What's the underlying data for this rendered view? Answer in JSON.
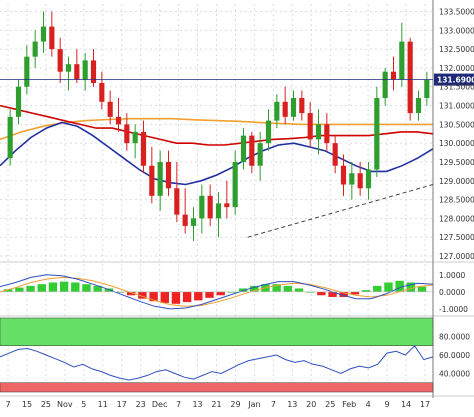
{
  "chart_data": [
    {
      "type": "candlestick",
      "title": "",
      "y_ticks": [
        "133.5000",
        "133.0000",
        "132.5000",
        "132.0000",
        "131.5000",
        "131.0000",
        "130.5000",
        "130.0000",
        "129.5000",
        "129.0000",
        "128.5000",
        "128.0000",
        "127.5000",
        "127.0000"
      ],
      "ylim": [
        127.0,
        133.7
      ],
      "x_ticks": [
        "7",
        "15",
        "25",
        "Nov",
        "5",
        "11",
        "17",
        "23",
        "Dec",
        "7",
        "13",
        "21",
        "29",
        "Jan",
        "7",
        "13",
        "20",
        "25",
        "Feb",
        "4",
        "9",
        "14",
        "17"
      ],
      "last_price": "131.6900",
      "last_price_value": 131.69,
      "candles": [
        {
          "o": 129.6,
          "h": 130.9,
          "l": 129.4,
          "c": 130.7
        },
        {
          "o": 130.7,
          "h": 131.7,
          "l": 130.5,
          "c": 131.5
        },
        {
          "o": 131.5,
          "h": 132.6,
          "l": 131.3,
          "c": 132.3
        },
        {
          "o": 132.3,
          "h": 133.0,
          "l": 132.0,
          "c": 132.7
        },
        {
          "o": 132.7,
          "h": 133.5,
          "l": 132.4,
          "c": 133.1
        },
        {
          "o": 133.1,
          "h": 133.5,
          "l": 132.3,
          "c": 132.5
        },
        {
          "o": 132.5,
          "h": 132.8,
          "l": 131.6,
          "c": 131.9
        },
        {
          "o": 131.9,
          "h": 132.3,
          "l": 131.4,
          "c": 132.1
        },
        {
          "o": 132.1,
          "h": 132.5,
          "l": 131.6,
          "c": 131.7
        },
        {
          "o": 131.7,
          "h": 132.4,
          "l": 131.4,
          "c": 132.2
        },
        {
          "o": 132.2,
          "h": 132.5,
          "l": 131.5,
          "c": 131.6
        },
        {
          "o": 131.6,
          "h": 131.9,
          "l": 130.9,
          "c": 131.1
        },
        {
          "o": 131.1,
          "h": 131.4,
          "l": 130.5,
          "c": 130.7
        },
        {
          "o": 130.7,
          "h": 131.2,
          "l": 130.3,
          "c": 130.5
        },
        {
          "o": 130.5,
          "h": 130.8,
          "l": 129.8,
          "c": 130.0
        },
        {
          "o": 130.0,
          "h": 130.5,
          "l": 129.6,
          "c": 130.3
        },
        {
          "o": 130.3,
          "h": 130.6,
          "l": 129.2,
          "c": 129.4
        },
        {
          "o": 129.4,
          "h": 129.9,
          "l": 128.4,
          "c": 128.6
        },
        {
          "o": 128.6,
          "h": 129.8,
          "l": 128.2,
          "c": 129.5
        },
        {
          "o": 129.5,
          "h": 129.8,
          "l": 128.6,
          "c": 128.8
        },
        {
          "o": 128.8,
          "h": 129.5,
          "l": 127.9,
          "c": 128.1
        },
        {
          "o": 128.1,
          "h": 128.8,
          "l": 127.6,
          "c": 127.8
        },
        {
          "o": 127.8,
          "h": 128.3,
          "l": 127.4,
          "c": 128.0
        },
        {
          "o": 128.0,
          "h": 128.9,
          "l": 127.6,
          "c": 128.6
        },
        {
          "o": 128.6,
          "h": 128.9,
          "l": 127.8,
          "c": 128.0
        },
        {
          "o": 128.0,
          "h": 128.7,
          "l": 127.5,
          "c": 128.4
        },
        {
          "o": 128.4,
          "h": 129.0,
          "l": 128.0,
          "c": 128.3
        },
        {
          "o": 128.3,
          "h": 129.8,
          "l": 128.1,
          "c": 129.5
        },
        {
          "o": 129.5,
          "h": 130.4,
          "l": 129.3,
          "c": 130.2
        },
        {
          "o": 130.2,
          "h": 130.3,
          "l": 129.2,
          "c": 129.4
        },
        {
          "o": 129.4,
          "h": 130.3,
          "l": 129.0,
          "c": 130.0
        },
        {
          "o": 130.0,
          "h": 130.9,
          "l": 129.8,
          "c": 130.6
        },
        {
          "o": 130.6,
          "h": 131.3,
          "l": 130.4,
          "c": 131.1
        },
        {
          "o": 131.1,
          "h": 131.5,
          "l": 130.5,
          "c": 130.7
        },
        {
          "o": 130.7,
          "h": 131.4,
          "l": 130.6,
          "c": 131.2
        },
        {
          "o": 131.2,
          "h": 131.4,
          "l": 130.6,
          "c": 130.8
        },
        {
          "o": 130.8,
          "h": 131.1,
          "l": 129.9,
          "c": 130.1
        },
        {
          "o": 130.1,
          "h": 130.9,
          "l": 129.7,
          "c": 130.5
        },
        {
          "o": 130.5,
          "h": 130.8,
          "l": 129.8,
          "c": 130.0
        },
        {
          "o": 130.0,
          "h": 130.2,
          "l": 129.2,
          "c": 129.4
        },
        {
          "o": 129.4,
          "h": 129.7,
          "l": 128.6,
          "c": 128.9
        },
        {
          "o": 128.9,
          "h": 129.5,
          "l": 128.5,
          "c": 129.2
        },
        {
          "o": 129.2,
          "h": 129.5,
          "l": 128.6,
          "c": 128.8
        },
        {
          "o": 128.8,
          "h": 129.5,
          "l": 128.5,
          "c": 129.3
        },
        {
          "o": 129.3,
          "h": 131.5,
          "l": 129.1,
          "c": 131.2
        },
        {
          "o": 131.2,
          "h": 132.0,
          "l": 131.0,
          "c": 131.9
        },
        {
          "o": 131.9,
          "h": 132.3,
          "l": 131.4,
          "c": 131.7
        },
        {
          "o": 131.7,
          "h": 133.2,
          "l": 131.5,
          "c": 132.7
        },
        {
          "o": 132.7,
          "h": 132.8,
          "l": 130.6,
          "c": 130.8
        },
        {
          "o": 130.8,
          "h": 131.4,
          "l": 130.6,
          "c": 131.2
        },
        {
          "o": 131.2,
          "h": 131.9,
          "l": 131.0,
          "c": 131.69
        }
      ],
      "sma_red": [
        131.0,
        130.9,
        130.8,
        130.7,
        130.6,
        130.5,
        130.4,
        130.4,
        130.3,
        130.2,
        130.1,
        130.0,
        130.0,
        129.95,
        129.95,
        130.0,
        130.05,
        130.1,
        130.12,
        130.15,
        130.2,
        130.2,
        130.2,
        130.2,
        130.25,
        130.3,
        130.3,
        130.25
      ],
      "sma_orange": [
        130.1,
        130.3,
        130.45,
        130.55,
        130.6,
        130.63,
        130.65,
        130.65,
        130.65,
        130.62,
        130.6,
        130.58,
        130.55,
        130.52,
        130.5,
        130.5,
        130.5,
        130.5,
        130.5,
        130.5,
        130.5
      ],
      "sma_blue": [
        129.4,
        129.8,
        130.15,
        130.4,
        130.55,
        130.45,
        130.2,
        129.9,
        129.6,
        129.3,
        129.05,
        128.95,
        128.9,
        129.0,
        129.15,
        129.35,
        129.6,
        129.8,
        129.95,
        130.0,
        129.9,
        129.8,
        129.6,
        129.4,
        129.25,
        129.25,
        129.4,
        129.6,
        129.85
      ],
      "trendline": {
        "x_index": [
          28.5,
          57.5
        ],
        "y": [
          127.5,
          128.9
        ]
      }
    },
    {
      "type": "bar",
      "y_ticks": [
        "1.0000",
        "0.0000",
        "-1.0000"
      ],
      "ylim": [
        -1.3,
        1.4
      ],
      "histogram": [
        0.15,
        0.25,
        0.35,
        0.45,
        0.55,
        0.6,
        0.55,
        0.45,
        0.35,
        0.2,
        0.0,
        -0.2,
        -0.4,
        -0.55,
        -0.65,
        -0.7,
        -0.6,
        -0.5,
        -0.35,
        -0.2,
        0.0,
        0.2,
        0.35,
        0.45,
        0.45,
        0.35,
        0.2,
        0.0,
        -0.2,
        -0.3,
        -0.3,
        -0.15,
        0.1,
        0.35,
        0.55,
        0.65,
        0.55,
        0.3
      ],
      "macd_line": [
        0.3,
        0.55,
        0.85,
        1.0,
        0.95,
        0.75,
        0.45,
        0.15,
        -0.2,
        -0.55,
        -0.85,
        -1.0,
        -0.95,
        -0.75,
        -0.45,
        -0.15,
        0.15,
        0.4,
        0.6,
        0.6,
        0.4,
        0.15,
        -0.15,
        -0.4,
        -0.4,
        -0.1,
        0.3,
        0.5,
        0.45
      ],
      "signal_line": [
        0.0,
        0.25,
        0.55,
        0.75,
        0.85,
        0.8,
        0.65,
        0.4,
        0.1,
        -0.2,
        -0.5,
        -0.75,
        -0.85,
        -0.8,
        -0.6,
        -0.35,
        -0.05,
        0.2,
        0.4,
        0.5,
        0.45,
        0.25,
        0.0,
        -0.2,
        -0.3,
        -0.2,
        0.05,
        0.3,
        0.4
      ]
    },
    {
      "type": "line",
      "y_ticks": [
        "80.0000",
        "60.0000",
        "40.0000"
      ],
      "ylim": [
        20,
        100
      ],
      "overbought_zone": [
        70,
        100
      ],
      "oversold_zone": [
        20,
        30
      ],
      "rsi": [
        58,
        62,
        66,
        67,
        64,
        60,
        56,
        52,
        47,
        50,
        45,
        42,
        38,
        35,
        33,
        35,
        38,
        42,
        44,
        40,
        36,
        34,
        38,
        42,
        40,
        45,
        50,
        54,
        56,
        58,
        60,
        55,
        52,
        54,
        50,
        48,
        44,
        40,
        45,
        48,
        46,
        50,
        62,
        64,
        60,
        70,
        55,
        58
      ]
    }
  ],
  "colors": {
    "bull": "#2e9e2e",
    "bear": "#d92020",
    "sma_red": "#d00000",
    "sma_orange": "#f0a030",
    "sma_blue": "#2030a0",
    "hist_pos": "#33cc33",
    "hist_neg": "#ee2222",
    "overbought_fill": "#66e066",
    "oversold_fill": "#ee6666",
    "rsi_line": "#3050c0",
    "last_price_bg": "#1f2a7a",
    "grid": "#d8dde6",
    "axis_text": "#333333"
  }
}
